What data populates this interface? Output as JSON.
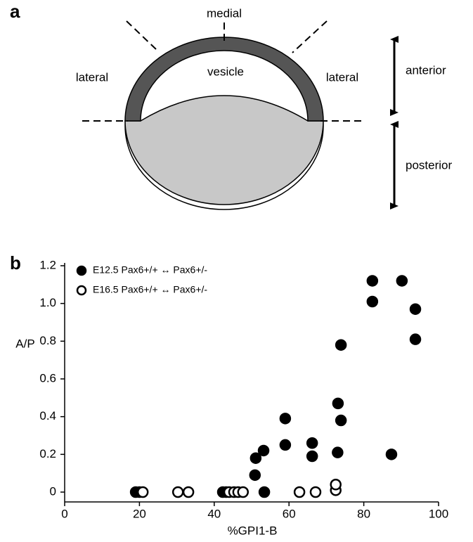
{
  "panel_a": {
    "label": "a",
    "medial": "medial",
    "lateral_left": "lateral",
    "lateral_right": "lateral",
    "vesicle": "vesicle",
    "anterior": "anterior",
    "posterior": "posterior"
  },
  "chart_data": {
    "type": "scatter",
    "panel_label": "b",
    "xlabel": "%GPI1-B",
    "ylabel": "A/P",
    "xlim": [
      0,
      100
    ],
    "xticks": [
      0,
      20,
      40,
      60,
      80,
      100
    ],
    "ylim": [
      0,
      1.2
    ],
    "yticks": [
      0,
      0.2,
      0.4,
      0.6,
      0.8,
      {
        "value": 1,
        "label": "1.0"
      },
      1.2
    ],
    "series": [
      {
        "name": "E12.5 Pax6+/+ ↔ Pax6+/-",
        "color": "#000000",
        "fill": "#000000",
        "x": [
          19.0,
          20.0,
          42.3,
          43.2,
          53.4,
          50.9,
          51.1,
          53.2,
          59.0,
          59.0,
          66.2,
          66.2,
          73.0,
          73.1,
          73.9,
          73.9,
          87.4,
          82.3,
          82.3,
          90.2,
          93.8,
          93.8
        ],
        "values": [
          0,
          0,
          0,
          0,
          0,
          0.09,
          0.18,
          0.22,
          0.25,
          0.39,
          0.26,
          0.19,
          0.21,
          0.47,
          0.38,
          0.78,
          0.2,
          1.12,
          1.01,
          1.12,
          0.97,
          0.81
        ]
      },
      {
        "name": "E16.5 Pax6+/+ ↔ Pax6+/-",
        "color": "#000000",
        "fill": "#ffffff",
        "x": [
          20.9,
          30.3,
          33.1,
          44.0,
          45.3,
          46.4,
          47.7,
          62.8,
          67.1,
          72.5,
          72.5
        ],
        "values": [
          0,
          0,
          0,
          0,
          0,
          0,
          0,
          0,
          0,
          0.01,
          0.04
        ]
      }
    ]
  }
}
